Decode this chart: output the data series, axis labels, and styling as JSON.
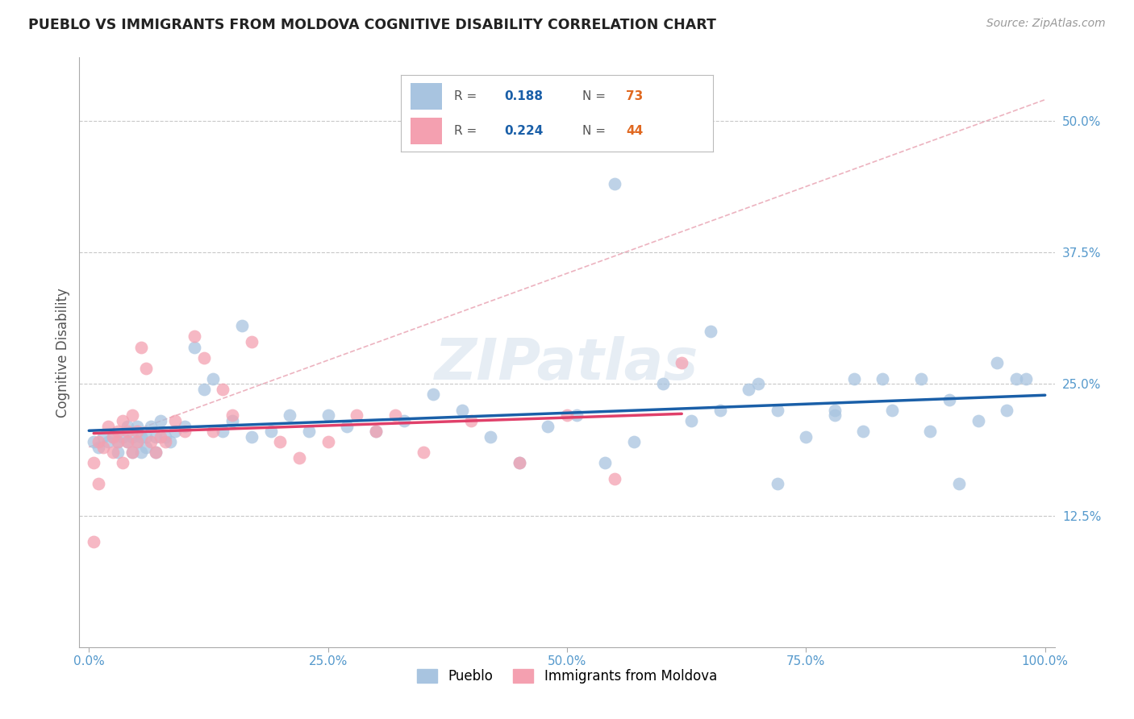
{
  "title": "PUEBLO VS IMMIGRANTS FROM MOLDOVA COGNITIVE DISABILITY CORRELATION CHART",
  "source": "Source: ZipAtlas.com",
  "ylabel": "Cognitive Disability",
  "watermark": "ZIPatlas",
  "legend_blue_label": "Pueblo",
  "legend_pink_label": "Immigrants from Moldova",
  "blue_R": 0.188,
  "blue_N": 73,
  "pink_R": 0.224,
  "pink_N": 44,
  "xlim": [
    -0.01,
    1.01
  ],
  "ylim": [
    0.0,
    0.56
  ],
  "xticks": [
    0.0,
    0.25,
    0.5,
    0.75,
    1.0
  ],
  "xticklabels": [
    "0.0%",
    "25.0%",
    "50.0%",
    "75.0%",
    "100.0%"
  ],
  "yticks": [
    0.125,
    0.25,
    0.375,
    0.5
  ],
  "yticklabels": [
    "12.5%",
    "25.0%",
    "37.5%",
    "50.0%"
  ],
  "blue_dot_color": "#a8c4e0",
  "pink_dot_color": "#f4a0b0",
  "blue_line_color": "#1a5fa8",
  "pink_line_color": "#e0406a",
  "dashed_line_color": "#e8a0b0",
  "grid_color": "#c8c8c8",
  "background_color": "#ffffff",
  "tick_color": "#5599cc",
  "legend_R_color": "#1a5fa8",
  "legend_N_color": "#e06820",
  "blue_x": [
    0.005,
    0.01,
    0.015,
    0.02,
    0.025,
    0.03,
    0.03,
    0.035,
    0.04,
    0.04,
    0.045,
    0.045,
    0.05,
    0.05,
    0.055,
    0.055,
    0.06,
    0.06,
    0.065,
    0.07,
    0.07,
    0.075,
    0.08,
    0.085,
    0.09,
    0.1,
    0.11,
    0.12,
    0.13,
    0.14,
    0.15,
    0.16,
    0.17,
    0.19,
    0.21,
    0.23,
    0.25,
    0.27,
    0.3,
    0.33,
    0.36,
    0.39,
    0.42,
    0.45,
    0.48,
    0.51,
    0.54,
    0.57,
    0.6,
    0.63,
    0.66,
    0.69,
    0.72,
    0.75,
    0.78,
    0.81,
    0.84,
    0.87,
    0.9,
    0.93,
    0.96,
    0.98,
    0.55,
    0.7,
    0.8,
    0.83,
    0.88,
    0.72,
    0.91,
    0.97,
    0.65,
    0.78,
    0.95
  ],
  "blue_y": [
    0.195,
    0.19,
    0.2,
    0.195,
    0.2,
    0.195,
    0.185,
    0.2,
    0.21,
    0.195,
    0.2,
    0.185,
    0.21,
    0.195,
    0.2,
    0.185,
    0.2,
    0.19,
    0.21,
    0.2,
    0.185,
    0.215,
    0.2,
    0.195,
    0.205,
    0.21,
    0.285,
    0.245,
    0.255,
    0.205,
    0.215,
    0.305,
    0.2,
    0.205,
    0.22,
    0.205,
    0.22,
    0.21,
    0.205,
    0.215,
    0.24,
    0.225,
    0.2,
    0.175,
    0.21,
    0.22,
    0.175,
    0.195,
    0.25,
    0.215,
    0.225,
    0.245,
    0.225,
    0.2,
    0.225,
    0.205,
    0.225,
    0.255,
    0.235,
    0.215,
    0.225,
    0.255,
    0.44,
    0.25,
    0.255,
    0.255,
    0.205,
    0.155,
    0.155,
    0.255,
    0.3,
    0.22,
    0.27
  ],
  "pink_x": [
    0.005,
    0.01,
    0.015,
    0.02,
    0.025,
    0.025,
    0.03,
    0.03,
    0.035,
    0.035,
    0.04,
    0.04,
    0.045,
    0.045,
    0.05,
    0.05,
    0.055,
    0.06,
    0.065,
    0.07,
    0.075,
    0.08,
    0.09,
    0.1,
    0.11,
    0.12,
    0.13,
    0.14,
    0.15,
    0.17,
    0.2,
    0.22,
    0.25,
    0.28,
    0.3,
    0.32,
    0.35,
    0.4,
    0.45,
    0.5,
    0.55,
    0.62,
    0.005,
    0.01
  ],
  "pink_y": [
    0.1,
    0.195,
    0.19,
    0.21,
    0.2,
    0.185,
    0.205,
    0.195,
    0.215,
    0.175,
    0.205,
    0.195,
    0.22,
    0.185,
    0.205,
    0.195,
    0.285,
    0.265,
    0.195,
    0.185,
    0.2,
    0.195,
    0.215,
    0.205,
    0.295,
    0.275,
    0.205,
    0.245,
    0.22,
    0.29,
    0.195,
    0.18,
    0.195,
    0.22,
    0.205,
    0.22,
    0.185,
    0.215,
    0.175,
    0.22,
    0.16,
    0.27,
    0.175,
    0.155
  ]
}
